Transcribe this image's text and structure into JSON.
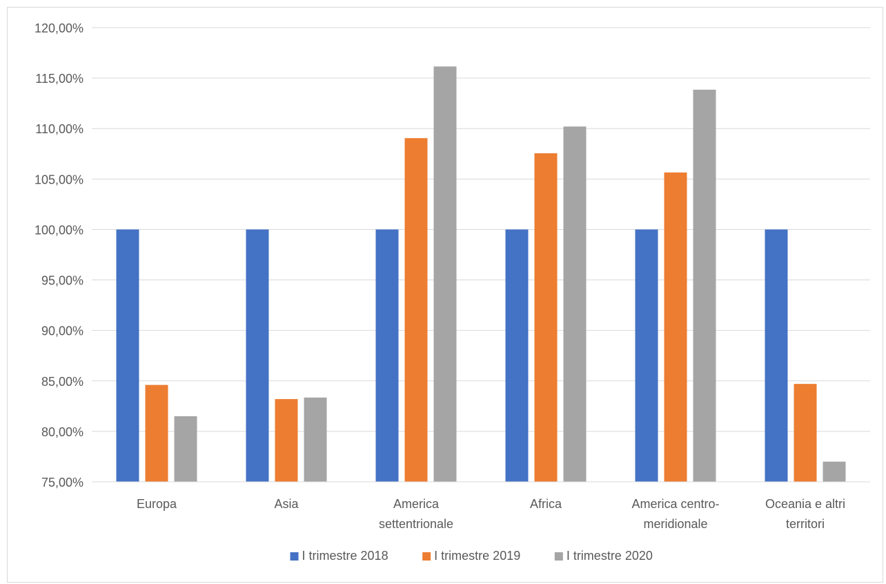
{
  "chart_data": {
    "type": "bar",
    "title": "",
    "xlabel": "",
    "ylabel": "",
    "ylim": [
      75,
      120
    ],
    "yticks": [
      75,
      80,
      85,
      90,
      95,
      100,
      105,
      110,
      115,
      120
    ],
    "y_tick_labels": [
      "75,00%",
      "80,00%",
      "85,00%",
      "90,00%",
      "95,00%",
      "100,00%",
      "105,00%",
      "110,00%",
      "115,00%",
      "120,00%"
    ],
    "grid": true,
    "legend_position": "bottom",
    "categories": [
      [
        "Europa"
      ],
      [
        "Asia"
      ],
      [
        "America",
        "settentrionale"
      ],
      [
        "Africa"
      ],
      [
        "America centro-",
        "meridionale"
      ],
      [
        "Oceania e altri",
        "territori"
      ]
    ],
    "series": [
      {
        "name": "I trimestre 2018",
        "color": "#4472c4",
        "values": [
          100,
          100,
          100,
          100,
          100,
          100
        ]
      },
      {
        "name": "I trimestre 2019",
        "color": "#ed7d31",
        "values": [
          84.6,
          83.2,
          109.05,
          107.55,
          105.65,
          84.7
        ]
      },
      {
        "name": "I trimestre 2020",
        "color": "#a5a5a5",
        "values": [
          81.5,
          83.35,
          116.15,
          110.2,
          113.85,
          77.0
        ]
      }
    ]
  }
}
